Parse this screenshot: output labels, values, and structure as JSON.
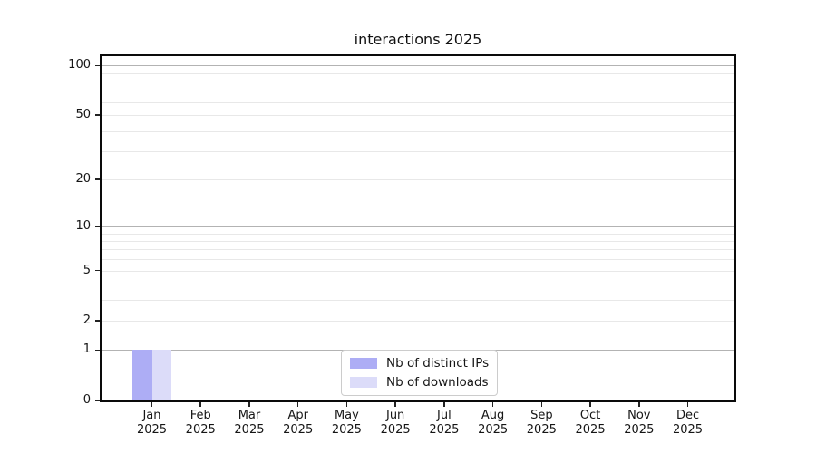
{
  "figure": {
    "background": "#ffffff"
  },
  "chart_data": {
    "type": "bar",
    "title": "interactions 2025",
    "categories": [
      "Jan",
      "Feb",
      "Mar",
      "Apr",
      "May",
      "Jun",
      "Jul",
      "Aug",
      "Sep",
      "Oct",
      "Nov",
      "Dec"
    ],
    "category_year": "2025",
    "series": [
      {
        "name": "Nb of distinct IPs",
        "color": "#adadf5",
        "values": [
          1,
          0,
          0,
          0,
          0,
          0,
          0,
          0,
          0,
          0,
          0,
          0
        ]
      },
      {
        "name": "Nb of downloads",
        "color": "#dcdcf9",
        "values": [
          1,
          0,
          0,
          0,
          0,
          0,
          0,
          0,
          0,
          0,
          0,
          0
        ]
      }
    ],
    "xlabel": "",
    "ylabel": "",
    "yscale": "log1p",
    "ylim": [
      0,
      114
    ],
    "y_tick_values": [
      100,
      50,
      20,
      10,
      5,
      2,
      1,
      0
    ],
    "y_major_gridlines": [
      1,
      10,
      100
    ],
    "y_minor_gridlines": [
      2,
      3,
      4,
      5,
      6,
      7,
      8,
      9,
      20,
      30,
      40,
      50,
      60,
      70,
      80,
      90
    ],
    "grid": "both",
    "legend_position": "lower center"
  },
  "colors": {
    "major_grid": "#b3b3b3",
    "minor_grid": "#e8e8e8",
    "spine": "#0a0a0a",
    "tick_label": "#151515",
    "legend_border": "#cccccc"
  }
}
